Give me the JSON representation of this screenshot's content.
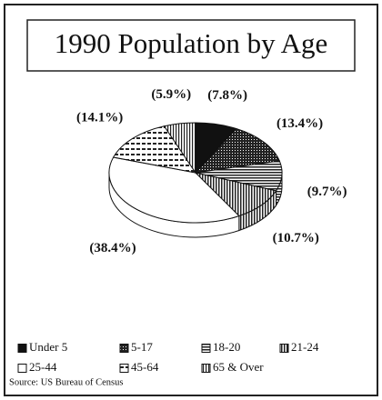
{
  "chart_data": {
    "type": "pie",
    "title": "1990 Population by Age",
    "categories": [
      "Under 5",
      "5-17",
      "18-20",
      "21-24",
      "25-44",
      "45-64",
      "65 & Over"
    ],
    "values": [
      7.8,
      13.4,
      9.7,
      10.7,
      38.4,
      14.1,
      5.9
    ],
    "value_labels": [
      "(7.8%)",
      "(13.4%)",
      "(9.7%)",
      "(10.7%)",
      "(38.4%)",
      "(14.1%)",
      "(5.9%)"
    ],
    "colors": [
      "#111111",
      "#222222",
      "#222222",
      "#222222",
      "#ffffff",
      "#222222",
      "#222222"
    ],
    "source": "Source:  US Bureau of Census"
  }
}
